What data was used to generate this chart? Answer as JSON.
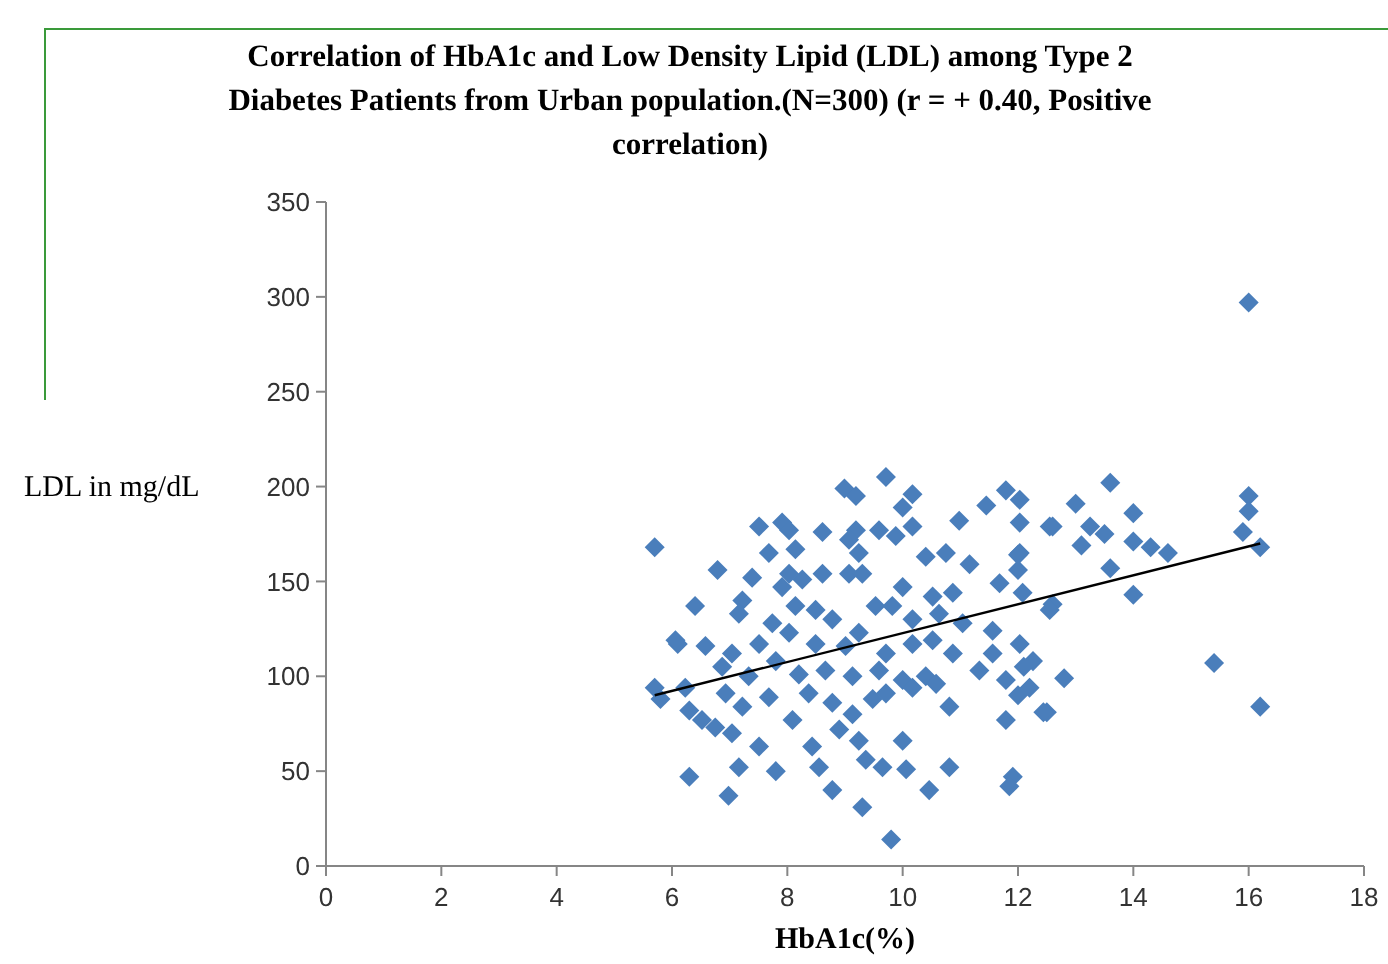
{
  "chart_data": {
    "type": "scatter",
    "title": "Correlation of HbA1c and Low Density Lipid (LDL) among Type 2 Diabetes Patients from Urban population.(N=300) (r = + 0.40, Positive correlation)",
    "xlabel": "HbA1c(%)",
    "ylabel": "LDL in mg/dL",
    "xlim": [
      0,
      18
    ],
    "xticks": [
      0,
      2,
      4,
      6,
      8,
      10,
      12,
      14,
      16,
      18
    ],
    "ylim": [
      0,
      350
    ],
    "yticks": [
      0,
      50,
      100,
      150,
      200,
      250,
      300,
      350
    ],
    "grid": false,
    "marker": "diamond",
    "series": [
      {
        "color": "#4a7ebb",
        "x": [
          5.7,
          6.4,
          6.1,
          5.7,
          5.8,
          6.3,
          6.3,
          16.0,
          13.6,
          16.0,
          16.0,
          15.9,
          16.2,
          13.0,
          12.6,
          14.0,
          13.25,
          13.5,
          13.1,
          14.0,
          14.3,
          14.6,
          13.6,
          14.0,
          12.6,
          15.4,
          12.8,
          12.5,
          16.2,
          9.71,
          8.99,
          9.19,
          10.17,
          10.0,
          7.51,
          7.91,
          8.03,
          8.61,
          9.19,
          9.59,
          9.88,
          10.17,
          10.98,
          11.45,
          11.79,
          12.03,
          12.03,
          12.55,
          7.68,
          8.14,
          9.07,
          9.24,
          10.4,
          10.75,
          11.16,
          12.03,
          6.79,
          7.39,
          7.91,
          8.26,
          8.61,
          9.07,
          10.0,
          10.52,
          10.87,
          11.68,
          12.08,
          7.22,
          7.16,
          7.74,
          8.14,
          8.49,
          8.78,
          9.53,
          9.82,
          10.17,
          10.63,
          11.04,
          11.56,
          12.55,
          6.06,
          6.58,
          7.04,
          7.51,
          8.03,
          8.49,
          9.01,
          9.24,
          9.71,
          10.17,
          10.52,
          10.87,
          11.56,
          12.03,
          12.26,
          11.33,
          6.23,
          6.87,
          7.33,
          7.8,
          8.2,
          8.66,
          9.13,
          9.59,
          10.0,
          10.4,
          10.58,
          11.79,
          12.2,
          6.93,
          7.22,
          7.68,
          8.09,
          8.37,
          8.78,
          9.13,
          9.48,
          9.71,
          10.17,
          10.81,
          11.79,
          12.44,
          6.75,
          7.04,
          7.51,
          8.43,
          8.9,
          9.24,
          10.0,
          8.55,
          9.36,
          9.65,
          10.06,
          10.81,
          7.16,
          7.8,
          11.91,
          11.85,
          6.98,
          8.78,
          9.3,
          10.46,
          9.8,
          6.52,
          8.03,
          9.3,
          12.0,
          12.0,
          12.1,
          12.0
        ],
        "values": [
          168,
          137,
          117,
          94,
          88,
          82,
          47,
          297,
          202,
          195,
          187,
          176,
          168,
          191,
          179,
          186,
          179,
          175,
          169,
          171,
          168,
          165,
          157,
          143,
          138,
          107,
          99,
          81,
          84,
          205,
          199,
          195,
          196,
          189,
          179,
          181,
          177,
          176,
          177,
          177,
          174,
          179,
          182,
          190,
          198,
          193,
          181,
          179,
          165,
          167,
          172,
          165,
          163,
          165,
          159,
          165,
          156,
          152,
          147,
          151,
          154,
          154,
          147,
          142,
          144,
          149,
          144,
          140,
          133,
          128,
          137,
          135,
          130,
          137,
          137,
          130,
          133,
          128,
          124,
          135,
          119,
          116,
          112,
          117,
          123,
          117,
          116,
          123,
          112,
          117,
          119,
          112,
          112,
          117,
          108,
          103,
          94,
          105,
          100,
          108,
          101,
          103,
          100,
          103,
          98,
          100,
          96,
          98,
          94,
          91,
          84,
          89,
          77,
          91,
          86,
          80,
          88,
          91,
          94,
          84,
          77,
          81,
          73,
          70,
          63,
          63,
          72,
          66,
          66,
          52,
          56,
          52,
          51,
          52,
          52,
          50,
          47,
          42,
          37,
          40,
          31,
          40,
          14,
          77,
          154,
          154,
          164,
          156,
          105,
          90
        ]
      },
      {
        "type": "line",
        "color": "#000000",
        "marker": "none",
        "x": [
          5.7,
          16.2
        ],
        "values": [
          90,
          170
        ]
      }
    ]
  }
}
